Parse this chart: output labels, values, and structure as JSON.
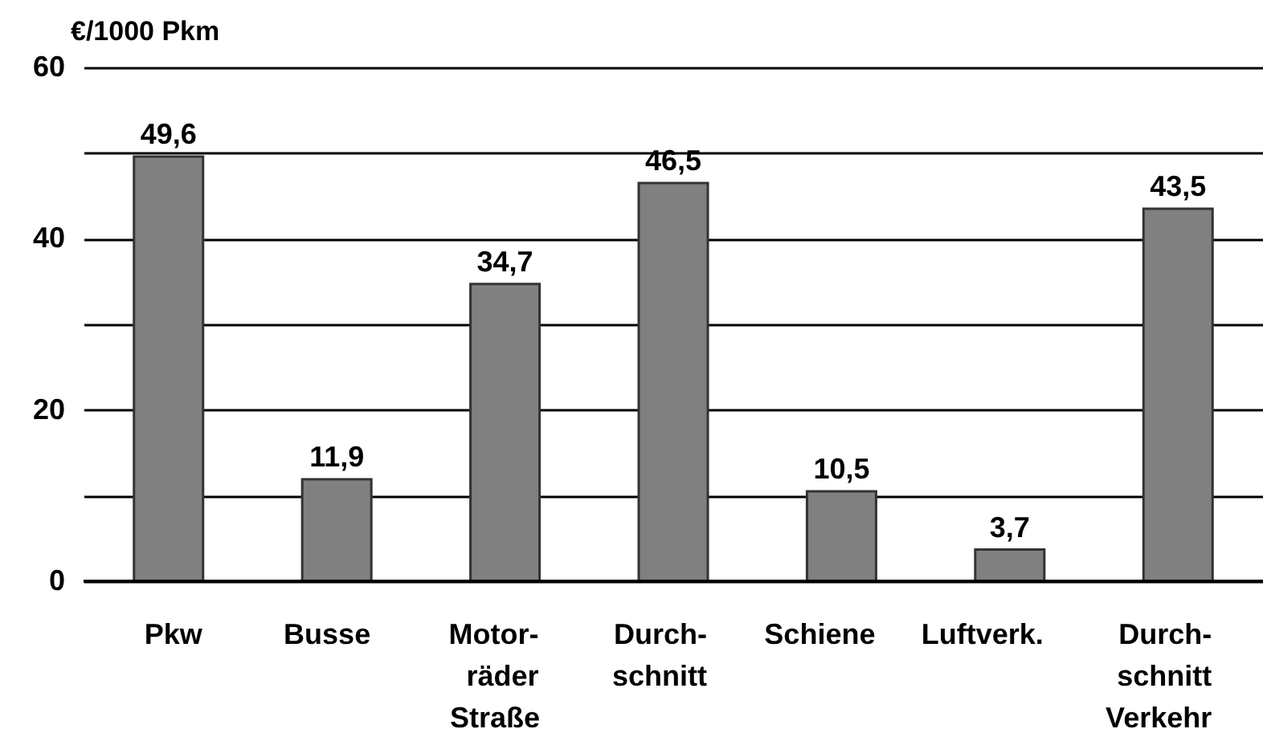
{
  "chart_data": {
    "type": "bar",
    "ylabel": "€/1000 Pkm",
    "categories": [
      "Pkw",
      "Busse",
      "Motor-\nräder",
      "Durch-\nschnitt",
      "Schiene",
      "Luftverk.",
      "Durch-\nschnitt\nVerkehr"
    ],
    "values": [
      49.6,
      11.9,
      34.7,
      46.5,
      10.5,
      3.7,
      43.5
    ],
    "color": "#808080",
    "data_labels": true,
    "value_labels": [
      "49,6",
      "11,9",
      "34,7",
      "46,5",
      "10,5",
      "3,7",
      "43,5"
    ],
    "ylim": [
      0,
      60
    ],
    "yticks": [
      0,
      {
        "value": 10,
        "label": null
      },
      20,
      {
        "value": 30,
        "label": null
      },
      40,
      {
        "value": 50,
        "label": null
      },
      60
    ],
    "grid": "y",
    "annotations": [
      "Straße"
    ]
  }
}
